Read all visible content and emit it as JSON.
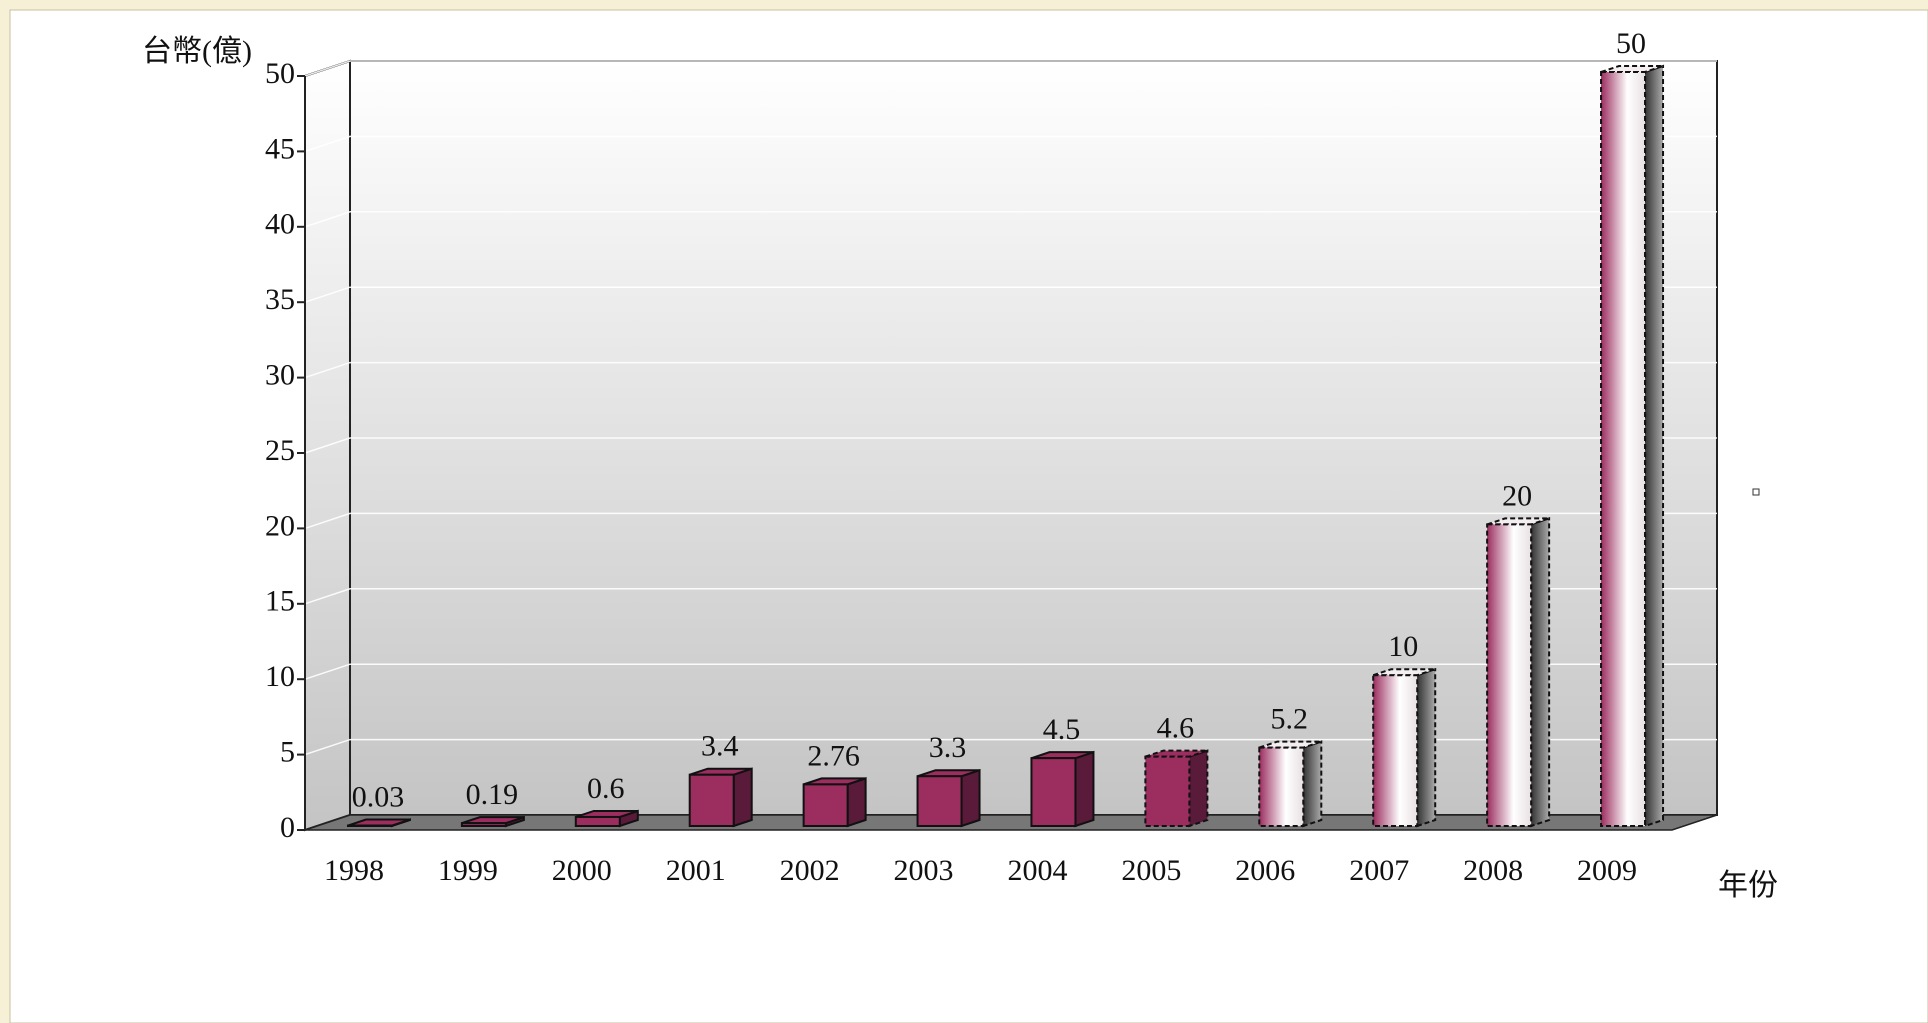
{
  "chart_data": {
    "type": "bar",
    "y_label": "台幣(億)",
    "x_label": "年份",
    "categories": [
      "1998",
      "1999",
      "2000",
      "2001",
      "2002",
      "2003",
      "2004",
      "2005",
      "2006",
      "2007",
      "2008",
      "2009"
    ],
    "values": [
      0.03,
      0.19,
      0.6,
      3.4,
      2.76,
      3.3,
      4.5,
      4.6,
      5.2,
      10,
      20,
      50
    ],
    "color": "#9b2d5f",
    "bar_styles": [
      "solid",
      "solid",
      "solid",
      "solid",
      "solid",
      "solid",
      "solid",
      "dashed",
      "gradient",
      "gradient",
      "gradient",
      "gradient"
    ],
    "ylim": [
      0,
      50
    ],
    "yticks": [
      0,
      5,
      10,
      15,
      20,
      25,
      30,
      35,
      40,
      45,
      50
    ],
    "grid": true
  }
}
